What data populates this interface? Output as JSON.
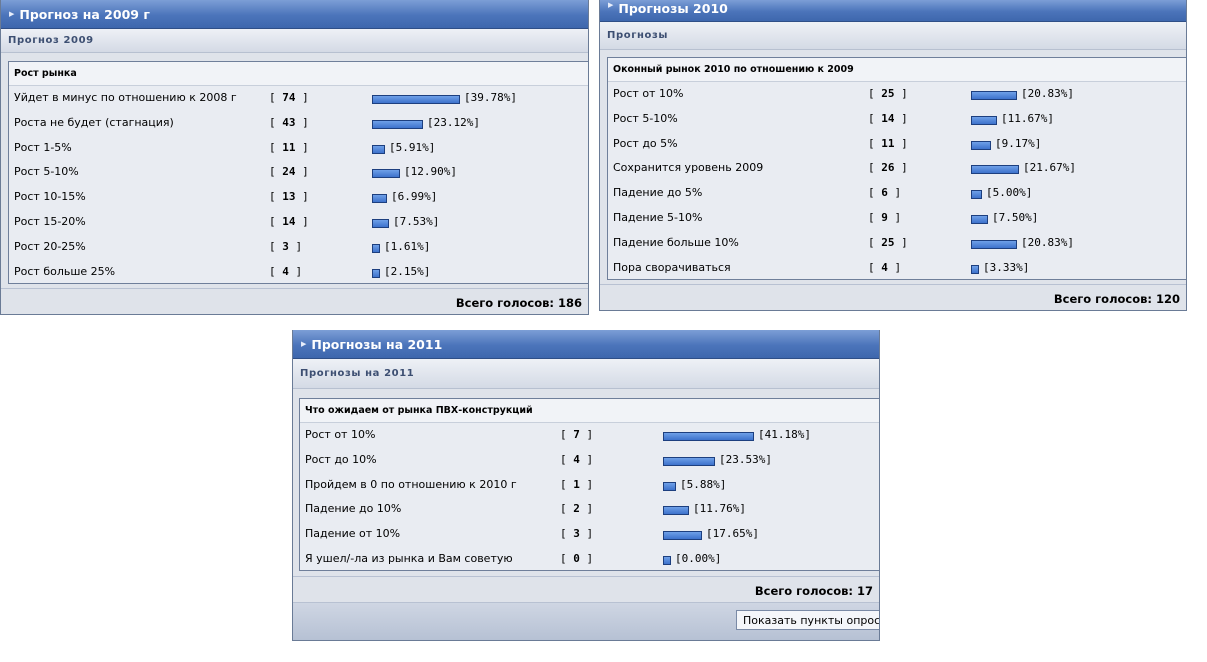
{
  "polls": [
    {
      "header": "Прогноз на 2009 г",
      "subheader": "Прогноз 2009",
      "question": "Рост рынка",
      "total_label": "Всего голосов: 186",
      "options": [
        {
          "label": "Уйдет в минус по отношению к 2008 г",
          "votes": "74",
          "percent_text": "[39.78%]",
          "percent": 39.78
        },
        {
          "label": "Роста не будет (стагнация)",
          "votes": "43",
          "percent_text": "[23.12%]",
          "percent": 23.12
        },
        {
          "label": "Рост 1-5%",
          "votes": "11",
          "percent_text": "[5.91%]",
          "percent": 5.91
        },
        {
          "label": "Рост 5-10%",
          "votes": "24",
          "percent_text": "[12.90%]",
          "percent": 12.9
        },
        {
          "label": "Рост 10-15%",
          "votes": "13",
          "percent_text": "[6.99%]",
          "percent": 6.99
        },
        {
          "label": "Рост 15-20%",
          "votes": "14",
          "percent_text": "[7.53%]",
          "percent": 7.53
        },
        {
          "label": "Рост 20-25%",
          "votes": "3",
          "percent_text": "[1.61%]",
          "percent": 1.61
        },
        {
          "label": "Рост больше 25%",
          "votes": "4",
          "percent_text": "[2.15%]",
          "percent": 2.15
        }
      ]
    },
    {
      "header": "Прогнозы 2010",
      "subheader": "Прогнозы",
      "question": "Оконный рынок 2010 по отношению к 2009",
      "total_label": "Всего голосов: 120",
      "options": [
        {
          "label": "Рост от 10%",
          "votes": "25",
          "percent_text": "[20.83%]",
          "percent": 20.83
        },
        {
          "label": "Рост 5-10%",
          "votes": "14",
          "percent_text": "[11.67%]",
          "percent": 11.67
        },
        {
          "label": "Рост до 5%",
          "votes": "11",
          "percent_text": "[9.17%]",
          "percent": 9.17
        },
        {
          "label": "Сохранится уровень 2009",
          "votes": "26",
          "percent_text": "[21.67%]",
          "percent": 21.67
        },
        {
          "label": "Падение до 5%",
          "votes": "6",
          "percent_text": "[5.00%]",
          "percent": 5.0
        },
        {
          "label": "Падение 5-10%",
          "votes": "9",
          "percent_text": "[7.50%]",
          "percent": 7.5
        },
        {
          "label": "Падение больше 10%",
          "votes": "25",
          "percent_text": "[20.83%]",
          "percent": 20.83
        },
        {
          "label": "Пора сворачиваться",
          "votes": "4",
          "percent_text": "[3.33%]",
          "percent": 3.33
        }
      ]
    },
    {
      "header": "Прогнозы на 2011",
      "subheader": "Прогнозы на 2011",
      "question": "Что ожидаем от рынка ПВХ-конструкций",
      "total_label": "Всего голосов: 17",
      "show_button": "Показать пункты опрос",
      "options": [
        {
          "label": "Рост от 10%",
          "votes": "7",
          "percent_text": "[41.18%]",
          "percent": 41.18
        },
        {
          "label": "Рост до 10%",
          "votes": "4",
          "percent_text": "[23.53%]",
          "percent": 23.53
        },
        {
          "label": "Пройдем в 0 по отношению к 2010 г",
          "votes": "1",
          "percent_text": "[5.88%]",
          "percent": 5.88
        },
        {
          "label": "Падение до 10%",
          "votes": "2",
          "percent_text": "[11.76%]",
          "percent": 11.76
        },
        {
          "label": "Падение от 10%",
          "votes": "3",
          "percent_text": "[17.65%]",
          "percent": 17.65
        },
        {
          "label": "Я ушел/-ла из рынка и Вам советую",
          "votes": "0",
          "percent_text": "[0.00%]",
          "percent": 0.0
        }
      ]
    }
  ],
  "colors": {
    "header_blue": "#4b74ba",
    "bar_fill": "#3d72cc",
    "panel_bg": "#e9ecf2"
  },
  "icons": {
    "header_marker": "triangle-right-icon"
  }
}
